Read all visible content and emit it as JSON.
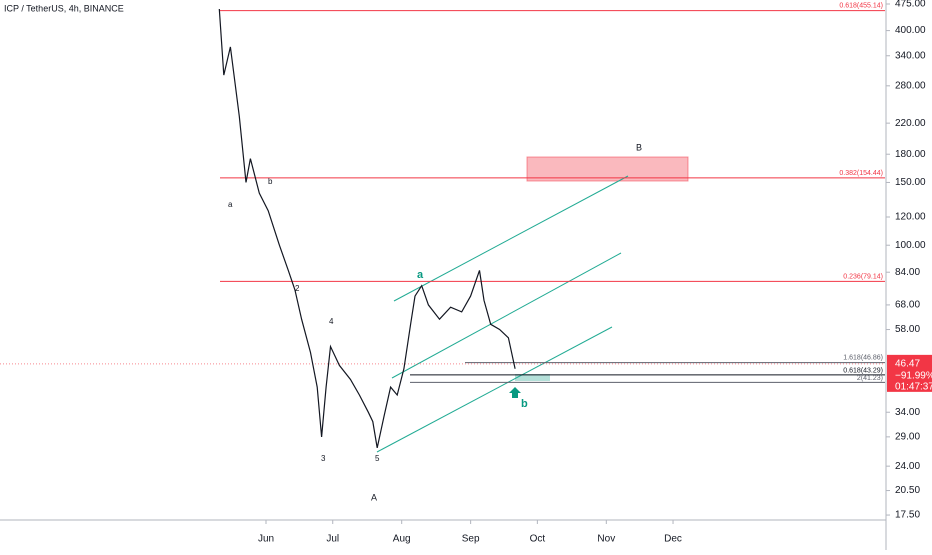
{
  "header": {
    "symbol": "ICP / TetherUS, 4h, BINANCE"
  },
  "chart_data": {
    "type": "line",
    "log_scale": true,
    "grid": false,
    "color": "#131722",
    "x": [
      131,
      133,
      136,
      140,
      143,
      145,
      149,
      153,
      158,
      162,
      165,
      168,
      172,
      175,
      177,
      179,
      181,
      185,
      190,
      194,
      198,
      200,
      202,
      205,
      208,
      211,
      214,
      217,
      219,
      222,
      225,
      230,
      235,
      240,
      244,
      248,
      250,
      253,
      257,
      261,
      264
    ],
    "values": [
      460,
      300,
      360,
      230,
      150,
      175,
      140,
      125,
      100,
      85,
      75,
      62,
      50,
      40,
      29,
      40,
      52,
      46,
      42,
      38,
      34,
      32,
      27,
      33,
      40,
      38,
      45,
      60,
      72,
      77,
      68,
      62,
      67,
      65,
      72,
      85,
      70,
      60,
      58,
      55,
      45
    ],
    "xlim": [
      32.4,
      430.3
    ],
    "xticks": [
      {
        "value": 152,
        "label": "Jun"
      },
      {
        "value": 182,
        "label": "Jul"
      },
      {
        "value": 213,
        "label": "Aug"
      },
      {
        "value": 244,
        "label": "Sep"
      },
      {
        "value": 274,
        "label": "Oct"
      },
      {
        "value": 305,
        "label": "Nov"
      },
      {
        "value": 335,
        "label": "Dec"
      }
    ],
    "ylim": [
      16.95,
      487.4
    ],
    "yticks": [
      {
        "value": 475,
        "label": "475.00"
      },
      {
        "value": 400,
        "label": "400.00"
      },
      {
        "value": 340,
        "label": "340.00"
      },
      {
        "value": 280,
        "label": "280.00"
      },
      {
        "value": 220,
        "label": "220.00"
      },
      {
        "value": 180,
        "label": "180.00"
      },
      {
        "value": 150,
        "label": "150.00"
      },
      {
        "value": 120,
        "label": "120.00"
      },
      {
        "value": 100,
        "label": "100.00"
      },
      {
        "value": 84,
        "label": "84.00"
      },
      {
        "value": 68,
        "label": "68.00"
      },
      {
        "value": 58,
        "label": "58.00"
      },
      {
        "value": 34,
        "label": "34.00"
      },
      {
        "value": 29,
        "label": "29.00"
      },
      {
        "value": 24,
        "label": "24.00"
      },
      {
        "value": 20.5,
        "label": "20.50"
      },
      {
        "value": 17.5,
        "label": "17.50"
      }
    ],
    "hlines": [
      {
        "value": 455.14,
        "label": "0.618(455.14)",
        "color": "#f23645"
      },
      {
        "value": 154.44,
        "label": "0.382(154.44)",
        "color": "#f23645"
      },
      {
        "value": 79.14,
        "label": "0.236(79.14)",
        "color": "#f23645"
      },
      {
        "value": 46.86,
        "label": "1.618(46.86)",
        "color": "#5d606b"
      },
      {
        "value": 43.29,
        "label": "0.618(43.29)",
        "color": "#131722"
      },
      {
        "value": 41.23,
        "label": "2(41.23)",
        "color": "#5d606b"
      }
    ],
    "last_price": 46.47,
    "change": "−91.99%",
    "countdown": "01:47:37",
    "wave_labels": [
      "a",
      "b",
      "2",
      "4",
      "3",
      "5",
      "A",
      "B",
      "a",
      "b"
    ]
  }
}
